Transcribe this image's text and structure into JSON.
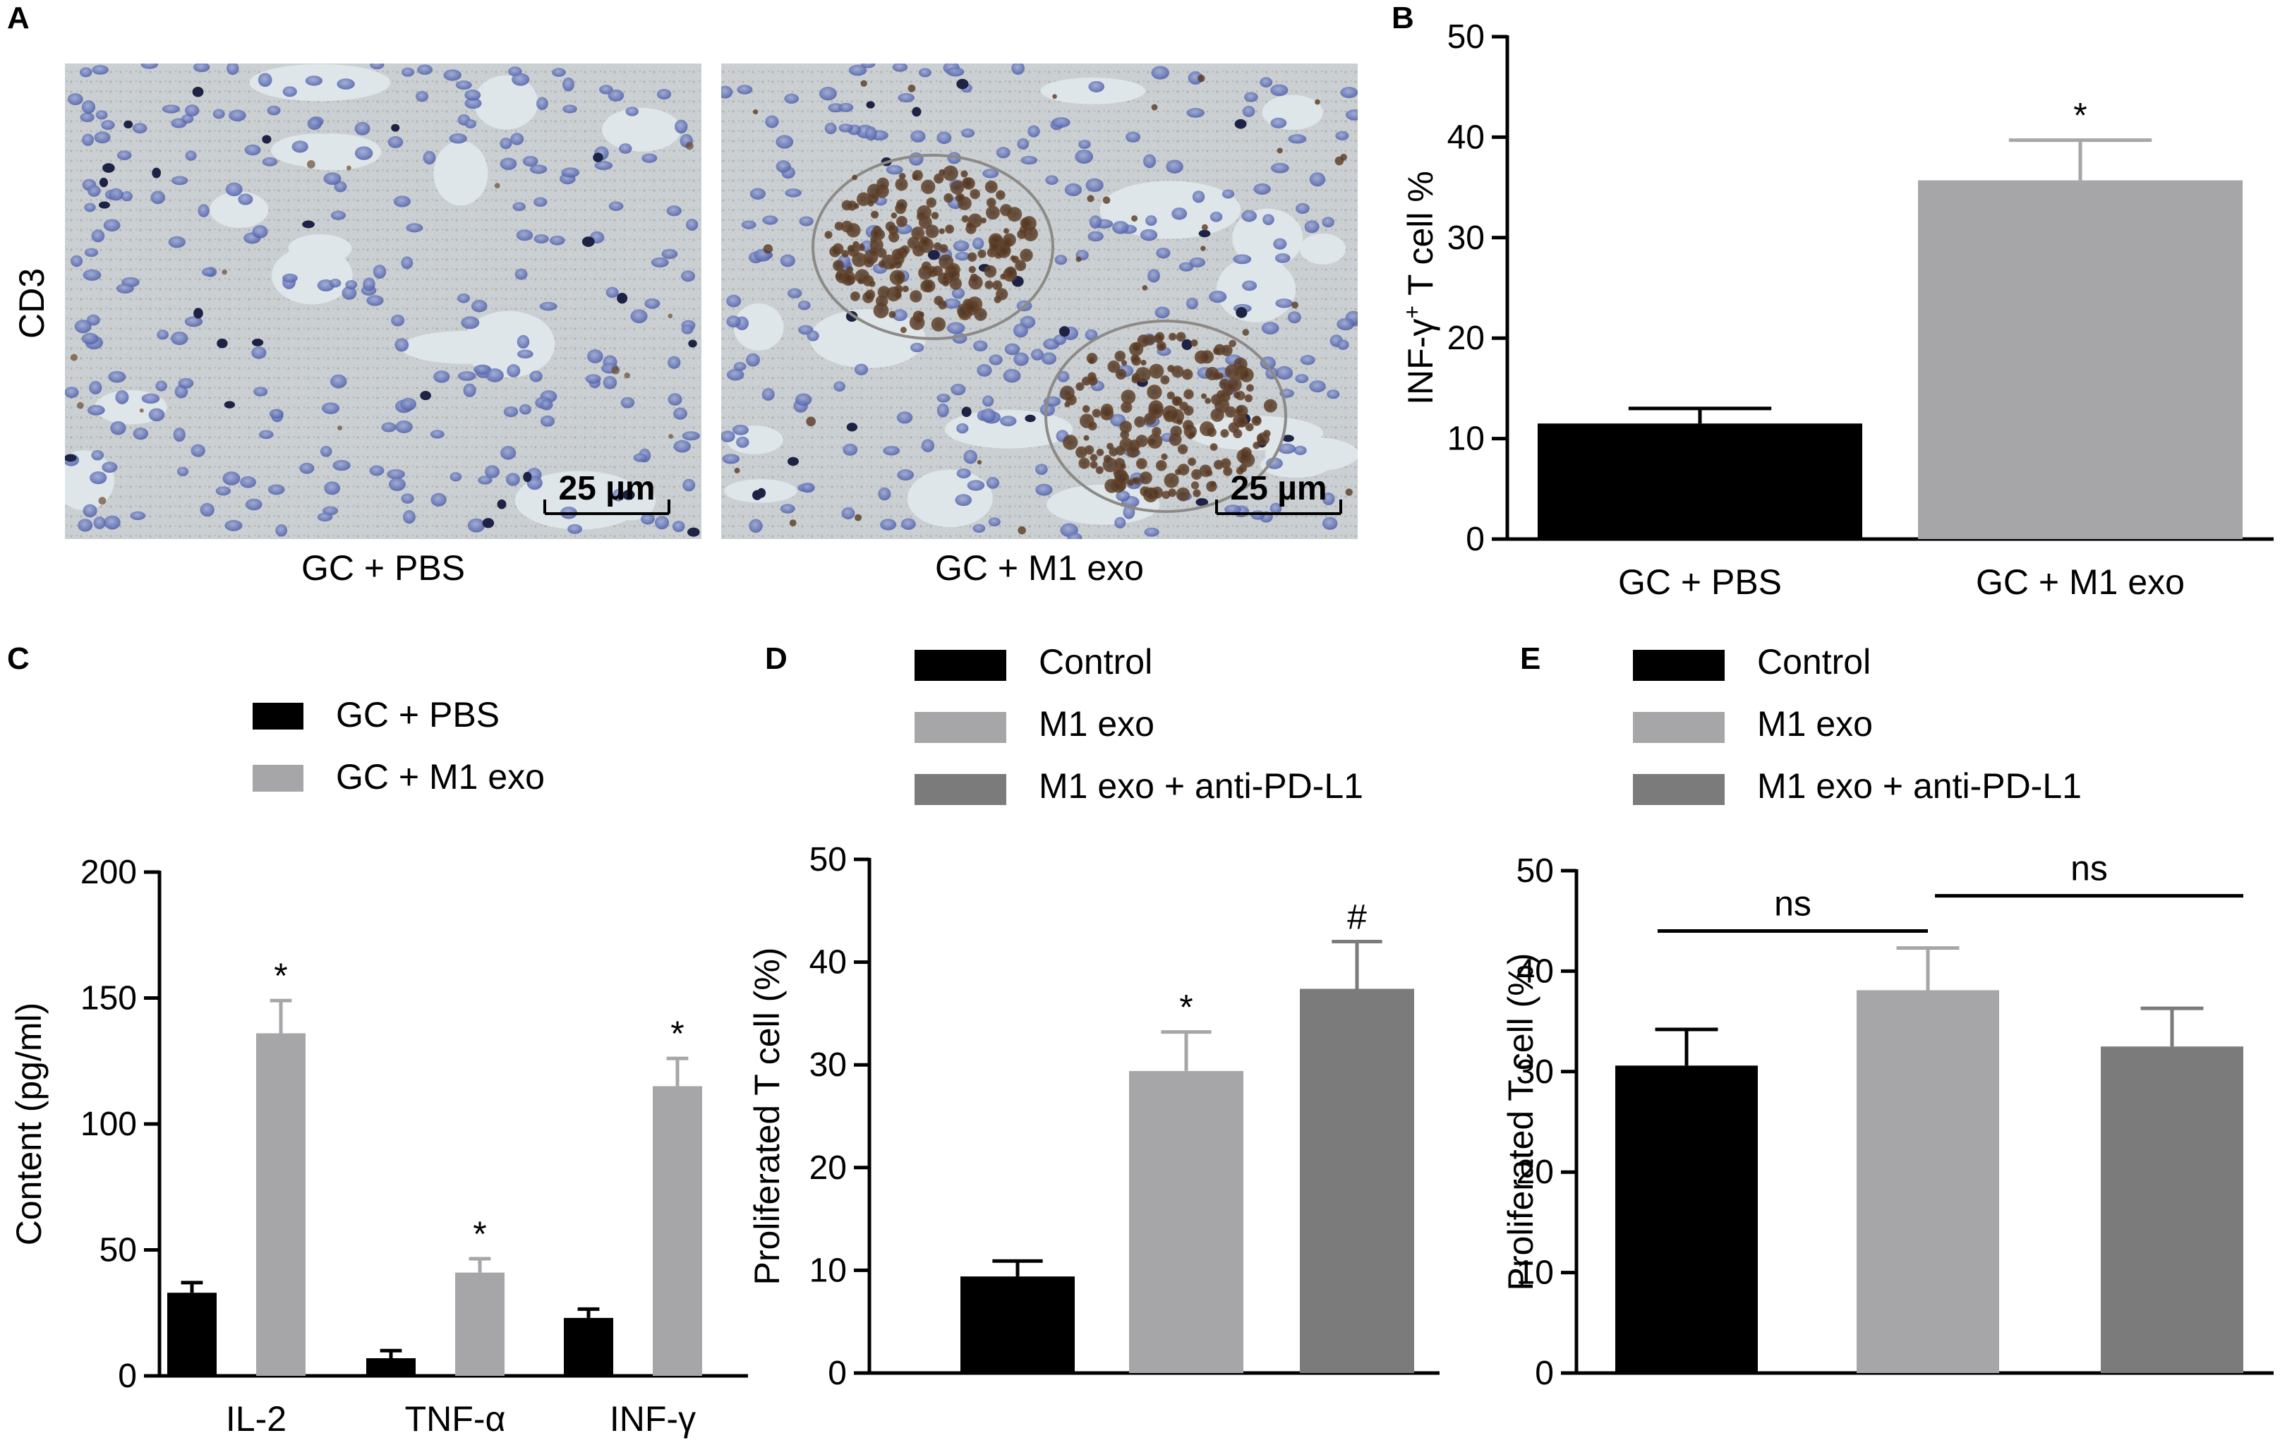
{
  "panel_labels": {
    "a": "A",
    "b": "B",
    "c": "C",
    "d": "D",
    "e": "E"
  },
  "panel_a": {
    "row_label": "CD3",
    "images": [
      {
        "caption": "GC + PBS",
        "scalebar": "25 µm"
      },
      {
        "caption": "GC + M1 exo",
        "scalebar": "25 µm"
      }
    ]
  },
  "chart_data": [
    {
      "panel": "B",
      "type": "bar",
      "categories": [
        "GC + PBS",
        "GC + M1 exo"
      ],
      "values": [
        11.5,
        35.7
      ],
      "errors": [
        1.5,
        4.0
      ],
      "annotations": [
        "",
        "*"
      ],
      "ylabel_prefix": "INF-γ",
      "ylabel_sup": "+",
      "ylabel_suffix": " T cell %",
      "ylim": [
        0,
        50
      ],
      "yticks": [
        0,
        10,
        20,
        30,
        40,
        50
      ],
      "colors": [
        "#000000",
        "#a6a6a8"
      ]
    },
    {
      "panel": "C",
      "type": "bar",
      "categories": [
        "IL-2",
        "TNF-α",
        "INF-γ"
      ],
      "series": [
        {
          "name": "GC + PBS",
          "values": [
            33,
            7,
            23
          ],
          "errors": [
            4,
            3,
            3.5
          ],
          "color": "#000000"
        },
        {
          "name": "GC + M1 exo",
          "values": [
            136,
            41,
            115
          ],
          "errors": [
            13,
            5.5,
            11
          ],
          "color": "#a6a6a8"
        }
      ],
      "annotations": [
        [
          "",
          "*"
        ],
        [
          "",
          "*"
        ],
        [
          "",
          "*"
        ]
      ],
      "ylabel": "Content (pg/ml)",
      "ylim": [
        0,
        200
      ],
      "yticks": [
        0,
        50,
        100,
        150,
        200
      ]
    },
    {
      "panel": "D",
      "type": "bar",
      "categories": [
        "Control",
        "M1 exo",
        "M1 exo + anti-PD-L1"
      ],
      "values": [
        9.4,
        29.4,
        37.4
      ],
      "errors": [
        1.5,
        3.8,
        4.6
      ],
      "annotations": [
        "",
        "*",
        "#"
      ],
      "colors": [
        "#000000",
        "#a6a6a8",
        "#7b7b7b"
      ],
      "ylabel": "Proliferated T cell (%)",
      "ylim": [
        0,
        50
      ],
      "yticks": [
        0,
        10,
        20,
        30,
        40,
        50
      ]
    },
    {
      "panel": "E",
      "type": "bar",
      "categories": [
        "Control",
        "M1 exo",
        "M1 exo + anti-PD-L1"
      ],
      "values": [
        30.6,
        38.1,
        32.5
      ],
      "errors": [
        3.6,
        4.2,
        3.8
      ],
      "colors": [
        "#000000",
        "#a6a6a8",
        "#7b7b7b"
      ],
      "ylabel": "Proliferated T cell (%)",
      "ylim": [
        0,
        50
      ],
      "yticks": [
        0,
        10,
        20,
        30,
        40,
        50
      ],
      "comparisons": [
        {
          "from": 0,
          "to": 1,
          "label": "ns",
          "y": 44
        },
        {
          "from": 1,
          "to": 2,
          "label": "ns",
          "y": 47.5
        }
      ]
    }
  ]
}
